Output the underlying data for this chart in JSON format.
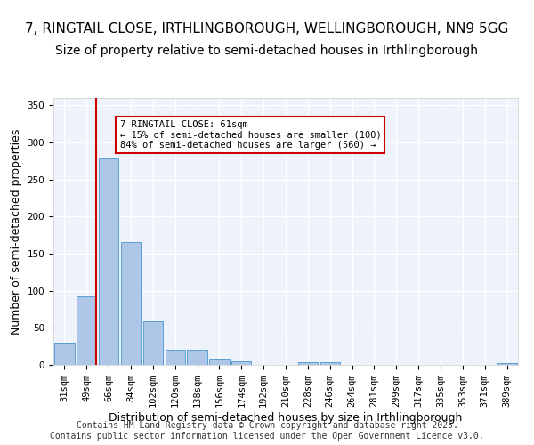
{
  "title1": "7, RINGTAIL CLOSE, IRTHLINGBOROUGH, WELLINGBOROUGH, NN9 5GG",
  "title2": "Size of property relative to semi-detached houses in Irthlingborough",
  "xlabel": "Distribution of semi-detached houses by size in Irthlingborough",
  "ylabel": "Number of semi-detached properties",
  "footer": "Contains HM Land Registry data © Crown copyright and database right 2025.\nContains public sector information licensed under the Open Government Licence v3.0.",
  "categories": [
    "31sqm",
    "49sqm",
    "66sqm",
    "84sqm",
    "102sqm",
    "120sqm",
    "138sqm",
    "156sqm",
    "174sqm",
    "192sqm",
    "210sqm",
    "228sqm",
    "246sqm",
    "264sqm",
    "281sqm",
    "299sqm",
    "317sqm",
    "335sqm",
    "353sqm",
    "371sqm",
    "389sqm"
  ],
  "values": [
    30,
    93,
    278,
    166,
    59,
    20,
    20,
    9,
    5,
    0,
    0,
    4,
    4,
    0,
    0,
    0,
    0,
    0,
    0,
    0,
    3
  ],
  "bar_color": "#aec6e8",
  "bar_edge_color": "#5a9fd4",
  "background_color": "#eef3fb",
  "grid_color": "#ffffff",
  "vline_x": 1,
  "vline_color": "#cc0000",
  "annotation_title": "7 RINGTAIL CLOSE: 61sqm",
  "annotation_line1": "← 15% of semi-detached houses are smaller (100)",
  "annotation_line2": "84% of semi-detached houses are larger (560) →",
  "annotation_box_color": "#ffffff",
  "annotation_box_edge": "#cc0000",
  "ylim": [
    0,
    360
  ],
  "yticks": [
    0,
    50,
    100,
    150,
    200,
    250,
    300,
    350
  ],
  "title1_fontsize": 11,
  "title2_fontsize": 10,
  "xlabel_fontsize": 9,
  "ylabel_fontsize": 9,
  "tick_fontsize": 7.5,
  "footer_fontsize": 7
}
